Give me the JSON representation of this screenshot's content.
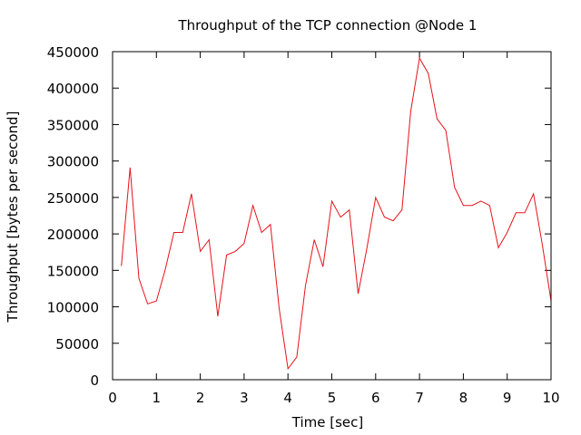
{
  "chart_data": {
    "type": "line",
    "title": "Throughput of the TCP connection @Node 1",
    "xlabel": "Time [sec]",
    "ylabel": "Throughput [bytes per second]",
    "xlim": [
      0,
      10
    ],
    "ylim": [
      0,
      450000
    ],
    "xticks": [
      "0",
      "1",
      "2",
      "3",
      "4",
      "5",
      "6",
      "7",
      "8",
      "9",
      "10"
    ],
    "yticks": [
      "0",
      "50000",
      "100000",
      "150000",
      "200000",
      "250000",
      "300000",
      "350000",
      "400000",
      "450000"
    ],
    "grid": false,
    "legend": "none",
    "series": [
      {
        "color": "#e8121a",
        "x": [
          0.2,
          0.4,
          0.6,
          0.8,
          1.0,
          1.2,
          1.4,
          1.6,
          1.8,
          2.0,
          2.2,
          2.4,
          2.6,
          2.8,
          3.0,
          3.2,
          3.4,
          3.6,
          3.8,
          4.0,
          4.2,
          4.4,
          4.6,
          4.8,
          5.0,
          5.2,
          5.4,
          5.6,
          5.8,
          6.0,
          6.2,
          6.4,
          6.6,
          6.8,
          7.0,
          7.2,
          7.4,
          7.6,
          7.8,
          8.0,
          8.2,
          8.4,
          8.6,
          8.8,
          9.0,
          9.2,
          9.4,
          9.6,
          9.8,
          10.0
        ],
        "y": [
          156000,
          291000,
          139000,
          104000,
          108000,
          151000,
          202000,
          202000,
          255000,
          176000,
          192000,
          87000,
          171000,
          176000,
          187000,
          239000,
          202000,
          213000,
          98000,
          15000,
          31000,
          129000,
          192000,
          155000,
          245000,
          223000,
          233000,
          118000,
          180000,
          250000,
          223000,
          218000,
          233000,
          368000,
          441000,
          420000,
          358000,
          342000,
          264000,
          239000,
          239000,
          245000,
          239000,
          181000,
          202000,
          229000,
          229000,
          255000,
          186000,
          108000
        ]
      }
    ]
  }
}
